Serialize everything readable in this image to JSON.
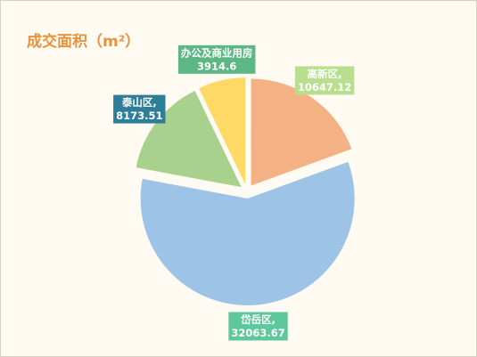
{
  "chart_data": {
    "type": "pie",
    "title": "成交面积（m²）",
    "categories": [
      "高新区,",
      "岱岳区,",
      "泰山区,",
      "办公及商业用房"
    ],
    "values": [
      10647.12,
      32063.67,
      8173.51,
      3914.6
    ],
    "colors": [
      "#f4b183",
      "#9dc3e6",
      "#a9d18e",
      "#ffd966"
    ],
    "label_colors": [
      "#b8df8e",
      "#5ec89c",
      "#2f7e99",
      "#5db785"
    ]
  }
}
